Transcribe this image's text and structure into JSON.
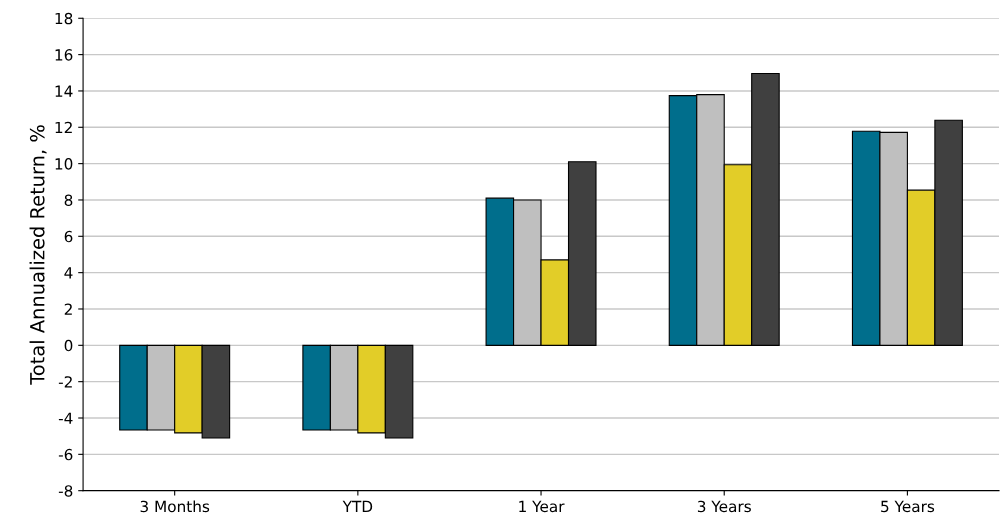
{
  "chart_data": {
    "type": "bar",
    "ylabel": "Total Annualized Return, %",
    "categories": [
      "3 Months",
      "YTD",
      "1 Year",
      "3 Years",
      "5 Years"
    ],
    "series": [
      {
        "color": "#006e8c",
        "values": [
          -4.66,
          -4.66,
          8.1,
          13.74,
          11.78
        ]
      },
      {
        "color": "#bfbfbf",
        "values": [
          -4.66,
          -4.66,
          8.0,
          13.8,
          11.72
        ]
      },
      {
        "color": "#e2cd28",
        "values": [
          -4.82,
          -4.82,
          4.7,
          9.94,
          8.54
        ]
      },
      {
        "color": "#404040",
        "values": [
          -5.1,
          -5.1,
          10.1,
          14.96,
          12.39
        ]
      }
    ],
    "ylim": [
      -8,
      18
    ],
    "yticks": [
      -8,
      -6,
      -4,
      -2,
      0,
      2,
      4,
      6,
      8,
      10,
      12,
      14,
      16,
      18
    ],
    "grid": "y"
  }
}
